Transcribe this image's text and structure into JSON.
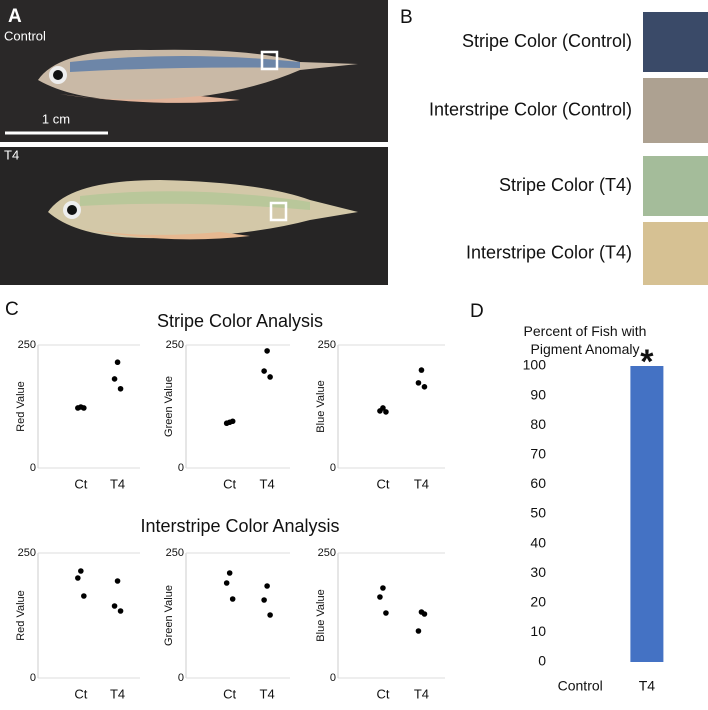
{
  "panel_labels": [
    "A",
    "B",
    "C",
    "D"
  ],
  "photo": {
    "labels": [
      "Control",
      "T4"
    ],
    "scale_bar": "1 cm"
  },
  "swatches": [
    {
      "label": "Stripe Color (Control)",
      "color": "#3a4a68"
    },
    {
      "label": "Interstripe Color (Control)",
      "color": "#ada191"
    },
    {
      "label": "Stripe Color (T4)",
      "color": "#a4bc9a"
    },
    {
      "label": "Interstripe Color (T4)",
      "color": "#d6c193"
    }
  ],
  "section_titles": [
    "Stripe Color Analysis",
    "Interstripe Color Analysis"
  ],
  "chart_data": [
    {
      "type": "scatter",
      "ylabel": "Red Value",
      "categories": [
        "Ct",
        "T4"
      ],
      "values": [
        [
          122,
          124,
          122
        ],
        [
          181,
          215,
          161
        ]
      ],
      "ylim": [
        0,
        250
      ],
      "yticks": [
        0,
        250
      ],
      "color": "#000000"
    },
    {
      "type": "scatter",
      "ylabel": "Green Value",
      "categories": [
        "Ct",
        "T4"
      ],
      "values": [
        [
          91,
          93,
          95
        ],
        [
          197,
          238,
          185
        ]
      ],
      "ylim": [
        0,
        250
      ],
      "yticks": [
        0,
        250
      ],
      "color": "#000000"
    },
    {
      "type": "scatter",
      "ylabel": "Blue Value",
      "categories": [
        "Ct",
        "T4"
      ],
      "values": [
        [
          116,
          122,
          114
        ],
        [
          173,
          199,
          165
        ]
      ],
      "ylim": [
        0,
        250
      ],
      "yticks": [
        0,
        250
      ],
      "color": "#000000"
    },
    {
      "type": "scatter",
      "ylabel": "Red Value",
      "categories": [
        "Ct",
        "T4"
      ],
      "values": [
        [
          200,
          214,
          164
        ],
        [
          144,
          194,
          134
        ]
      ],
      "ylim": [
        0,
        250
      ],
      "yticks": [
        0,
        250
      ],
      "color": "#000000"
    },
    {
      "type": "scatter",
      "ylabel": "Green Value",
      "categories": [
        "Ct",
        "T4"
      ],
      "values": [
        [
          190,
          210,
          158
        ],
        [
          156,
          184,
          126
        ]
      ],
      "ylim": [
        0,
        250
      ],
      "yticks": [
        0,
        250
      ],
      "color": "#000000"
    },
    {
      "type": "scatter",
      "ylabel": "Blue Value",
      "categories": [
        "Ct",
        "T4"
      ],
      "values": [
        [
          162,
          180,
          130
        ],
        [
          94,
          132,
          128
        ]
      ],
      "ylim": [
        0,
        250
      ],
      "yticks": [
        0,
        250
      ],
      "color": "#000000"
    },
    {
      "type": "bar",
      "title": "Percent of Fish with Pigment Anomaly",
      "categories": [
        "Control",
        "T4"
      ],
      "values": [
        0,
        100
      ],
      "color": "#4472c4",
      "ylim": [
        0,
        100
      ],
      "yticks": [
        0,
        10,
        20,
        30,
        40,
        50,
        60,
        70,
        80,
        90,
        100
      ],
      "annotation": "*"
    }
  ]
}
